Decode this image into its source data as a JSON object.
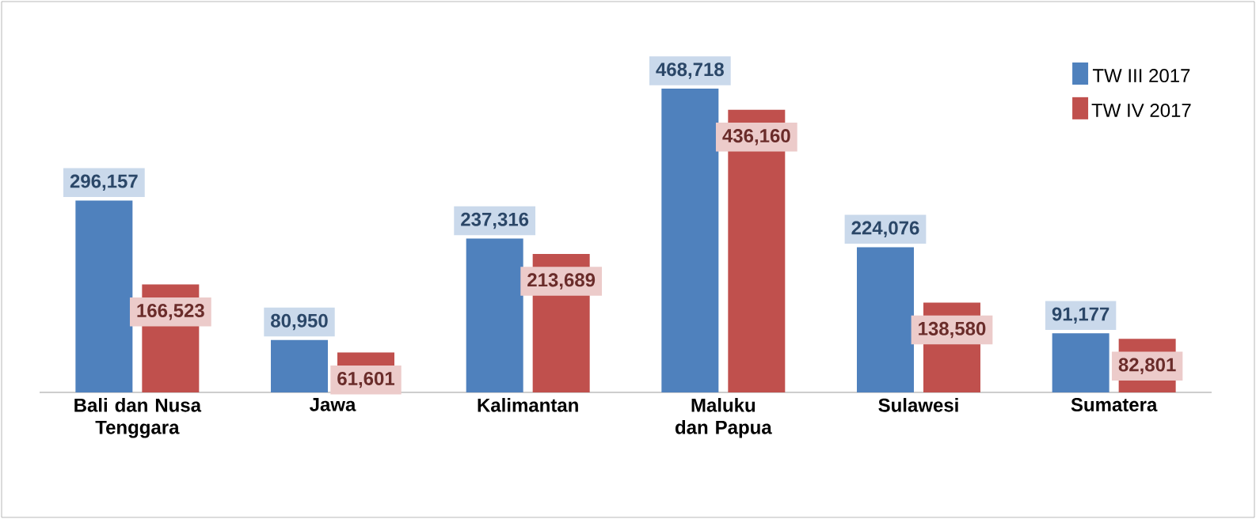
{
  "chart_data": {
    "type": "bar",
    "categories": [
      "Bali dan Nusa Tenggara",
      "Jawa",
      "Kalimantan",
      "Maluku dan Papua",
      "Sulawesi",
      "Sumatera"
    ],
    "series": [
      {
        "name": "TW III 2017",
        "color": "#4f81bd",
        "values": [
          296157,
          80950,
          237316,
          468718,
          224076,
          91177
        ],
        "value_labels": [
          "296,157",
          "80,950",
          "237,316",
          "468,718",
          "224,076",
          "91,177"
        ]
      },
      {
        "name": "TW IV 2017",
        "color": "#c0504d",
        "values": [
          166523,
          61601,
          213689,
          436160,
          138580,
          82801
        ],
        "value_labels": [
          "166,523",
          "61,601",
          "213,689",
          "436,160",
          "138,580",
          "82,801"
        ]
      }
    ],
    "legend": "top right"
  }
}
